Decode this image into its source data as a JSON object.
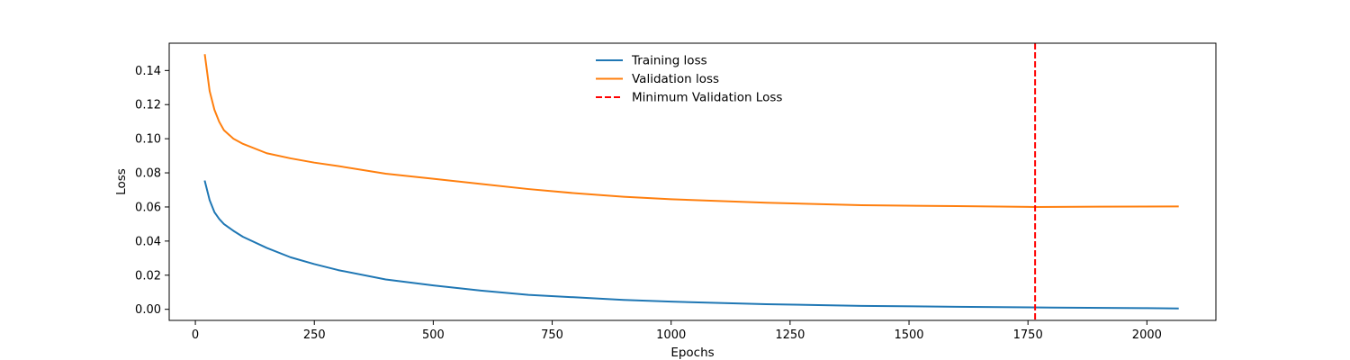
{
  "chart_data": {
    "type": "line",
    "xlabel": "Epochs",
    "ylabel": "Loss",
    "xlim": [
      -55,
      2145
    ],
    "ylim": [
      -0.0065,
      0.156
    ],
    "xticks": [
      {
        "value": 0,
        "label": "0"
      },
      {
        "value": 250,
        "label": "250"
      },
      {
        "value": 500,
        "label": "500"
      },
      {
        "value": 750,
        "label": "750"
      },
      {
        "value": 1000,
        "label": "1000"
      },
      {
        "value": 1250,
        "label": "1250"
      },
      {
        "value": 1500,
        "label": "1500"
      },
      {
        "value": 1750,
        "label": "1750"
      },
      {
        "value": 2000,
        "label": "2000"
      }
    ],
    "yticks": [
      {
        "value": 0.0,
        "label": "0.00"
      },
      {
        "value": 0.02,
        "label": "0.02"
      },
      {
        "value": 0.04,
        "label": "0.04"
      },
      {
        "value": 0.06,
        "label": "0.06"
      },
      {
        "value": 0.08,
        "label": "0.08"
      },
      {
        "value": 0.1,
        "label": "0.10"
      },
      {
        "value": 0.12,
        "label": "0.12"
      },
      {
        "value": 0.14,
        "label": "0.14"
      }
    ],
    "grid": false,
    "legend_position": "top-center",
    "series": [
      {
        "name": "Training loss",
        "color": "#1f77b4",
        "style": "solid",
        "x": [
          20,
          30,
          40,
          50,
          60,
          80,
          100,
          150,
          200,
          250,
          300,
          400,
          500,
          600,
          700,
          800,
          900,
          1000,
          1200,
          1400,
          1600,
          1800,
          2000,
          2065
        ],
        "y": [
          0.075,
          0.064,
          0.057,
          0.053,
          0.05,
          0.046,
          0.0425,
          0.036,
          0.0305,
          0.0265,
          0.023,
          0.0175,
          0.014,
          0.011,
          0.0085,
          0.007,
          0.0055,
          0.0045,
          0.003,
          0.002,
          0.0015,
          0.001,
          0.0007,
          0.0005
        ]
      },
      {
        "name": "Validation loss",
        "color": "#ff7f0e",
        "style": "solid",
        "x": [
          20,
          30,
          40,
          50,
          60,
          80,
          100,
          150,
          200,
          250,
          300,
          400,
          500,
          600,
          700,
          800,
          900,
          1000,
          1200,
          1400,
          1600,
          1765,
          1900,
          2065
        ],
        "y": [
          0.149,
          0.128,
          0.117,
          0.11,
          0.105,
          0.1,
          0.097,
          0.0915,
          0.0885,
          0.086,
          0.084,
          0.0795,
          0.0765,
          0.0735,
          0.0705,
          0.068,
          0.066,
          0.0645,
          0.0625,
          0.061,
          0.0605,
          0.06,
          0.0602,
          0.0603
        ]
      }
    ],
    "vlines": [
      {
        "name": "Minimum Validation Loss",
        "x": 1765,
        "color": "#ff0000",
        "style": "dashed"
      }
    ]
  }
}
